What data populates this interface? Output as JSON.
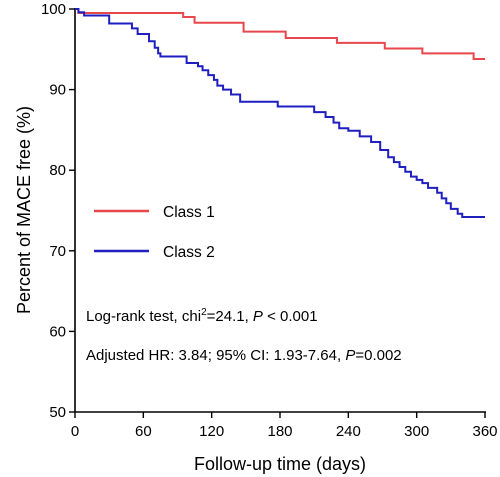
{
  "chart_data": {
    "type": "line",
    "subtype": "kaplan-meier step",
    "xlabel": "Follow-up time (days)",
    "ylabel": "Percent of MACE free (%)",
    "xlim": [
      0,
      360
    ],
    "ylim": [
      50,
      100
    ],
    "xticks": [
      0,
      60,
      120,
      180,
      240,
      300,
      360
    ],
    "yticks": [
      50,
      60,
      70,
      80,
      90,
      100
    ],
    "grid": false,
    "legend_position": "middle-left",
    "series": [
      {
        "name": "Class 1",
        "color": "#e8474c",
        "points": [
          [
            0,
            100
          ],
          [
            3,
            99.5
          ],
          [
            90,
            99.5
          ],
          [
            95,
            99
          ],
          [
            105,
            98.3
          ],
          [
            145,
            98.3
          ],
          [
            148,
            97.2
          ],
          [
            180,
            97.2
          ],
          [
            185,
            96.4
          ],
          [
            225,
            96.4
          ],
          [
            230,
            95.8
          ],
          [
            268,
            95.8
          ],
          [
            272,
            95.1
          ],
          [
            300,
            95.1
          ],
          [
            305,
            94.5
          ],
          [
            345,
            94.5
          ],
          [
            350,
            93.8
          ],
          [
            360,
            93.8
          ]
        ]
      },
      {
        "name": "Class 2",
        "color": "#1f1fbf",
        "points": [
          [
            0,
            100
          ],
          [
            3,
            99.6
          ],
          [
            8,
            99.2
          ],
          [
            25,
            99.2
          ],
          [
            30,
            98.2
          ],
          [
            45,
            98.2
          ],
          [
            50,
            97.6
          ],
          [
            55,
            96.9
          ],
          [
            65,
            96
          ],
          [
            70,
            95.2
          ],
          [
            73,
            94.5
          ],
          [
            75,
            94.1
          ],
          [
            95,
            94.1
          ],
          [
            98,
            93.3
          ],
          [
            105,
            93.3
          ],
          [
            108,
            92.9
          ],
          [
            112,
            92.4
          ],
          [
            117,
            91.8
          ],
          [
            122,
            91.2
          ],
          [
            125,
            90.5
          ],
          [
            130,
            90
          ],
          [
            137,
            89.4
          ],
          [
            145,
            88.5
          ],
          [
            175,
            88.5
          ],
          [
            178,
            87.9
          ],
          [
            205,
            87.9
          ],
          [
            210,
            87.2
          ],
          [
            220,
            86.6
          ],
          [
            227,
            85.9
          ],
          [
            232,
            85.2
          ],
          [
            240,
            84.9
          ],
          [
            250,
            84.2
          ],
          [
            260,
            83.5
          ],
          [
            268,
            82.5
          ],
          [
            275,
            81.6
          ],
          [
            280,
            81
          ],
          [
            285,
            80.4
          ],
          [
            290,
            79.8
          ],
          [
            295,
            79.2
          ],
          [
            300,
            78.8
          ],
          [
            305,
            78.4
          ],
          [
            310,
            77.8
          ],
          [
            318,
            77.2
          ],
          [
            322,
            76.5
          ],
          [
            326,
            75.9
          ],
          [
            330,
            75.2
          ],
          [
            336,
            74.6
          ],
          [
            340,
            74.2
          ],
          [
            360,
            74.2
          ]
        ]
      }
    ],
    "annotations": {
      "logrank_prefix": "Log-rank test, chi",
      "logrank_sup": "2",
      "logrank_stat": "=24.1, ",
      "logrank_p_label": "P",
      "logrank_p_value": " < 0.001",
      "hr_prefix": "Adjusted HR: 3.84; 95% CI: 1.93-7.64, ",
      "hr_p_label": "P",
      "hr_p_value": "=0.002"
    }
  }
}
